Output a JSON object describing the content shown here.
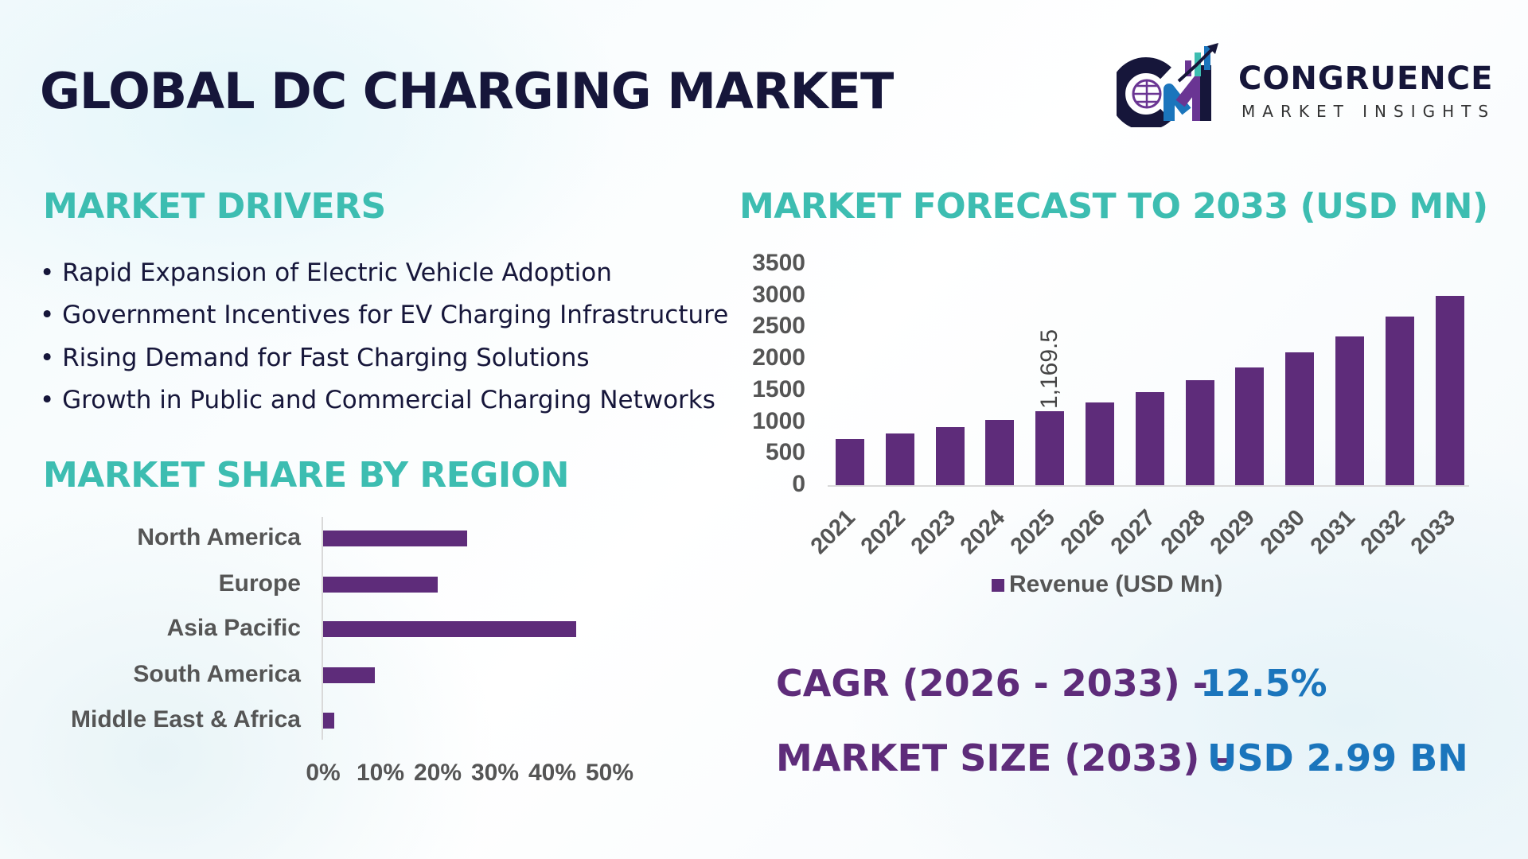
{
  "title": "GLOBAL DC CHARGING MARKET",
  "logo": {
    "name": "CONGRUENCE",
    "tagline": "MARKET INSIGHTS",
    "colors": {
      "navy": "#16163a",
      "teal": "#3dbdb1",
      "purple": "#6a3593",
      "blue": "#1b75bc"
    }
  },
  "drivers": {
    "heading": "MARKET DRIVERS",
    "items": [
      "Rapid Expansion of Electric Vehicle Adoption",
      "Government Incentives for EV Charging Infrastructure",
      "Rising Demand for Fast Charging Solutions",
      "Growth in Public and Commercial Charging Networks"
    ]
  },
  "region_heading": "MARKET SHARE BY REGION",
  "forecast_heading": "MARKET FORECAST TO 2033 (USD MN)",
  "chart_data": [
    {
      "type": "bar",
      "orientation": "vertical",
      "categories": [
        "2021",
        "2022",
        "2023",
        "2024",
        "2025",
        "2026",
        "2027",
        "2028",
        "2029",
        "2030",
        "2031",
        "2032",
        "2033"
      ],
      "series": [
        {
          "name": "Revenue (USD Mn)",
          "values": [
            730,
            818,
            919,
            1032,
            1169.5,
            1309,
            1473,
            1662,
            1866,
            2097,
            2359,
            2667,
            2991
          ]
        }
      ],
      "data_labels": [
        {
          "category": "2025",
          "text": "1,169.5"
        }
      ],
      "ylim": [
        0,
        3500
      ],
      "yticks": [
        "0",
        "500",
        "1000",
        "1500",
        "2000",
        "2500",
        "3000",
        "3500"
      ],
      "legend": "bottom",
      "grid": false,
      "color": "#5e2c7a"
    },
    {
      "type": "bar",
      "orientation": "horizontal",
      "categories": [
        "North America",
        "Europe",
        "Asia Pacific",
        "South America",
        "Middle East & Africa"
      ],
      "values": [
        25,
        20,
        44,
        9,
        2
      ],
      "xlim": [
        0,
        50
      ],
      "xticks": [
        "0%",
        "10%",
        "20%",
        "30%",
        "40%",
        "50%"
      ],
      "grid": false,
      "color": "#5e2c7a"
    }
  ],
  "cagr": {
    "label": "CAGR (2026 - 2033) -",
    "value": "12.5%"
  },
  "market_size": {
    "label": "MARKET SIZE (2033) –",
    "value": "USD 2.99 BN"
  }
}
